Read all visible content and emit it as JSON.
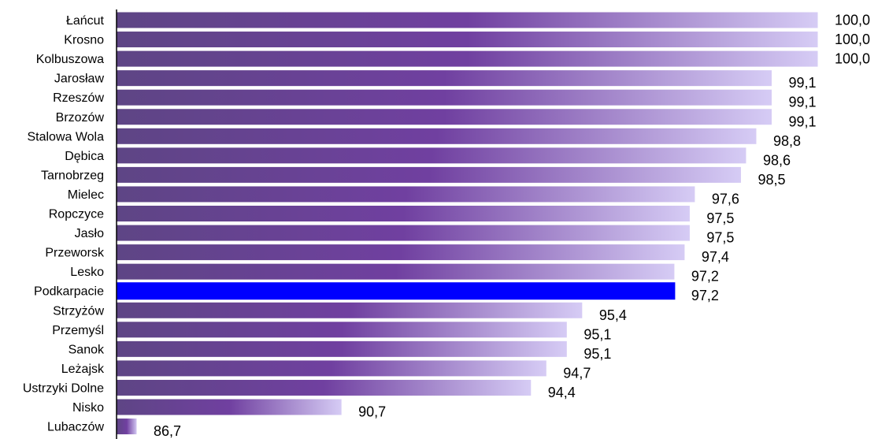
{
  "chart_data": {
    "type": "bar",
    "orientation": "horizontal",
    "title": "",
    "xlabel": "",
    "ylabel": "",
    "xlim": [
      86.3,
      100.0
    ],
    "grid": false,
    "legend": "none",
    "bar_fill": "gradient",
    "gradient_colors": [
      "#5e4585",
      "#7040a0",
      "#d6ccf5"
    ],
    "highlight_color": "#0000ff",
    "highlight_category": "Podkarpacie",
    "categories": [
      "Łańcut",
      "Krosno",
      "Kolbuszowa",
      "Jarosław",
      "Rzeszów",
      "Brzozów",
      "Stalowa Wola",
      "Dębica",
      "Tarnobrzeg",
      "Mielec",
      "Ropczyce",
      "Jasło",
      "Przeworsk",
      "Lesko",
      "Podkarpacie",
      "Strzyżów",
      "Przemyśl",
      "Sanok",
      "Leżajsk",
      "Ustrzyki Dolne",
      "Nisko",
      "Lubaczów"
    ],
    "values": [
      100.0,
      100.0,
      100.0,
      99.1,
      99.1,
      99.1,
      98.8,
      98.6,
      98.5,
      97.6,
      97.5,
      97.5,
      97.4,
      97.2,
      97.2,
      95.4,
      95.1,
      95.1,
      94.7,
      94.4,
      90.7,
      86.7
    ],
    "value_labels": [
      "100,0",
      "100,0",
      "100,0",
      "99,1",
      "99,1",
      "99,1",
      "98,8",
      "98,6",
      "98,5",
      "97,6",
      "97,5",
      "97,5",
      "97,4",
      "97,2",
      "97,2",
      "95,4",
      "95,1",
      "95,1",
      "94,7",
      "94,4",
      "90,7",
      "86,7"
    ]
  }
}
